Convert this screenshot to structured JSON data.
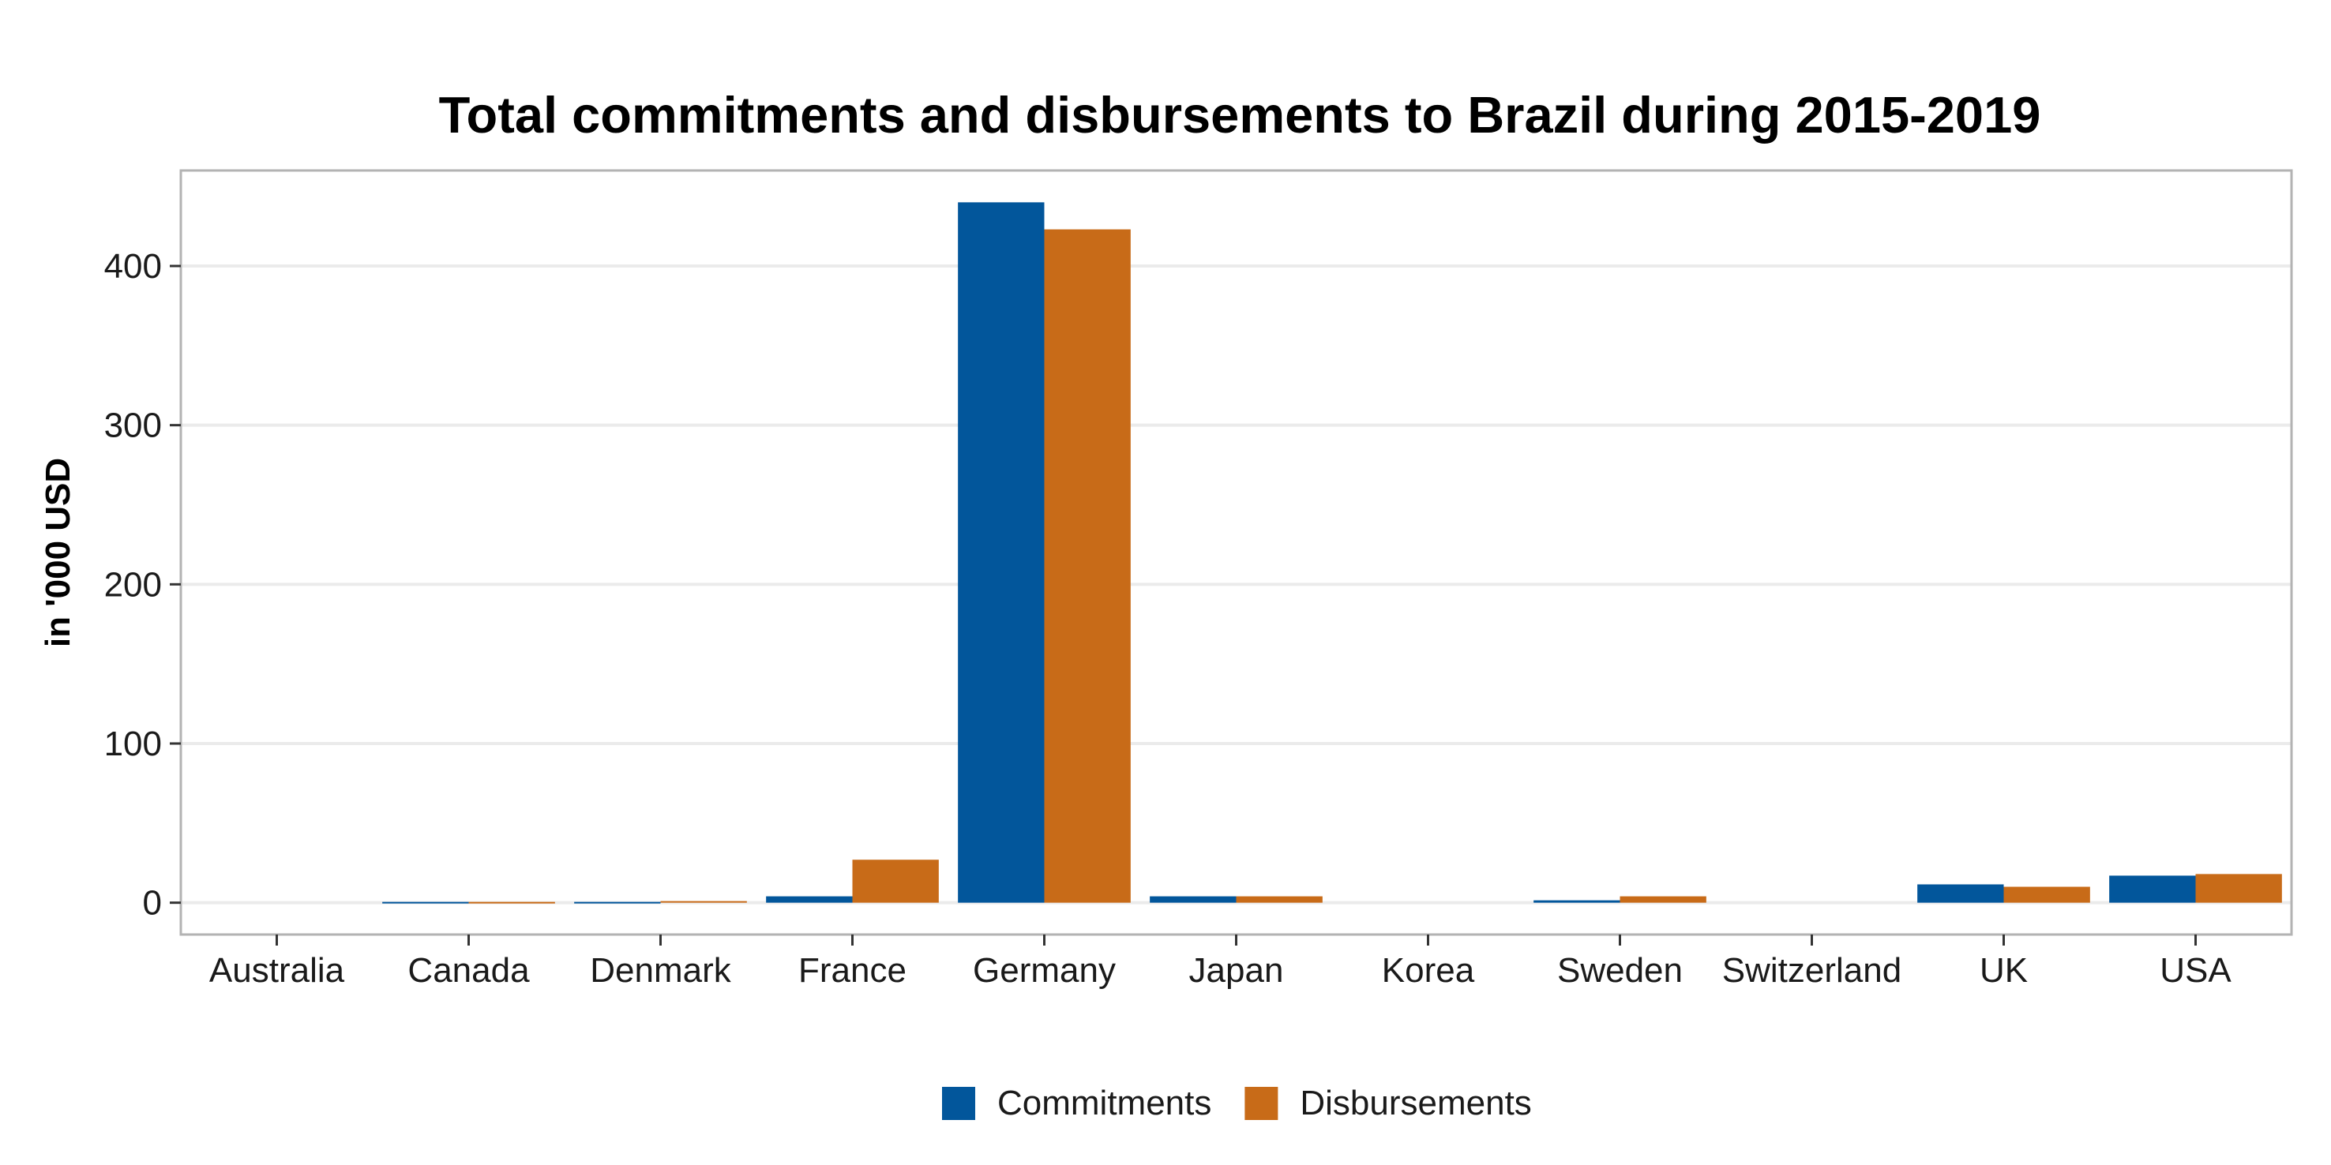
{
  "chart_data": {
    "type": "bar",
    "title": "Total commitments and disbursements to Brazil during 2015-2019",
    "xlabel": "",
    "ylabel": "in '000 USD",
    "categories": [
      "Australia",
      "Canada",
      "Denmark",
      "France",
      "Germany",
      "Japan",
      "Korea",
      "Sweden",
      "Switzerland",
      "UK",
      "USA"
    ],
    "series": [
      {
        "name": "Commitments",
        "color": "#02569B",
        "values": [
          0,
          0.5,
          0.5,
          4,
          440,
          4,
          0,
          1.5,
          0,
          11.5,
          17
        ]
      },
      {
        "name": "Disbursements",
        "color": "#C86B18",
        "values": [
          0,
          0.5,
          1,
          27,
          423,
          4,
          0,
          4,
          0,
          10,
          18
        ]
      }
    ],
    "ylim": [
      -20,
      460
    ],
    "yticks": [
      0,
      100,
      200,
      300,
      400
    ],
    "grid": true,
    "legend_position": "bottom"
  }
}
